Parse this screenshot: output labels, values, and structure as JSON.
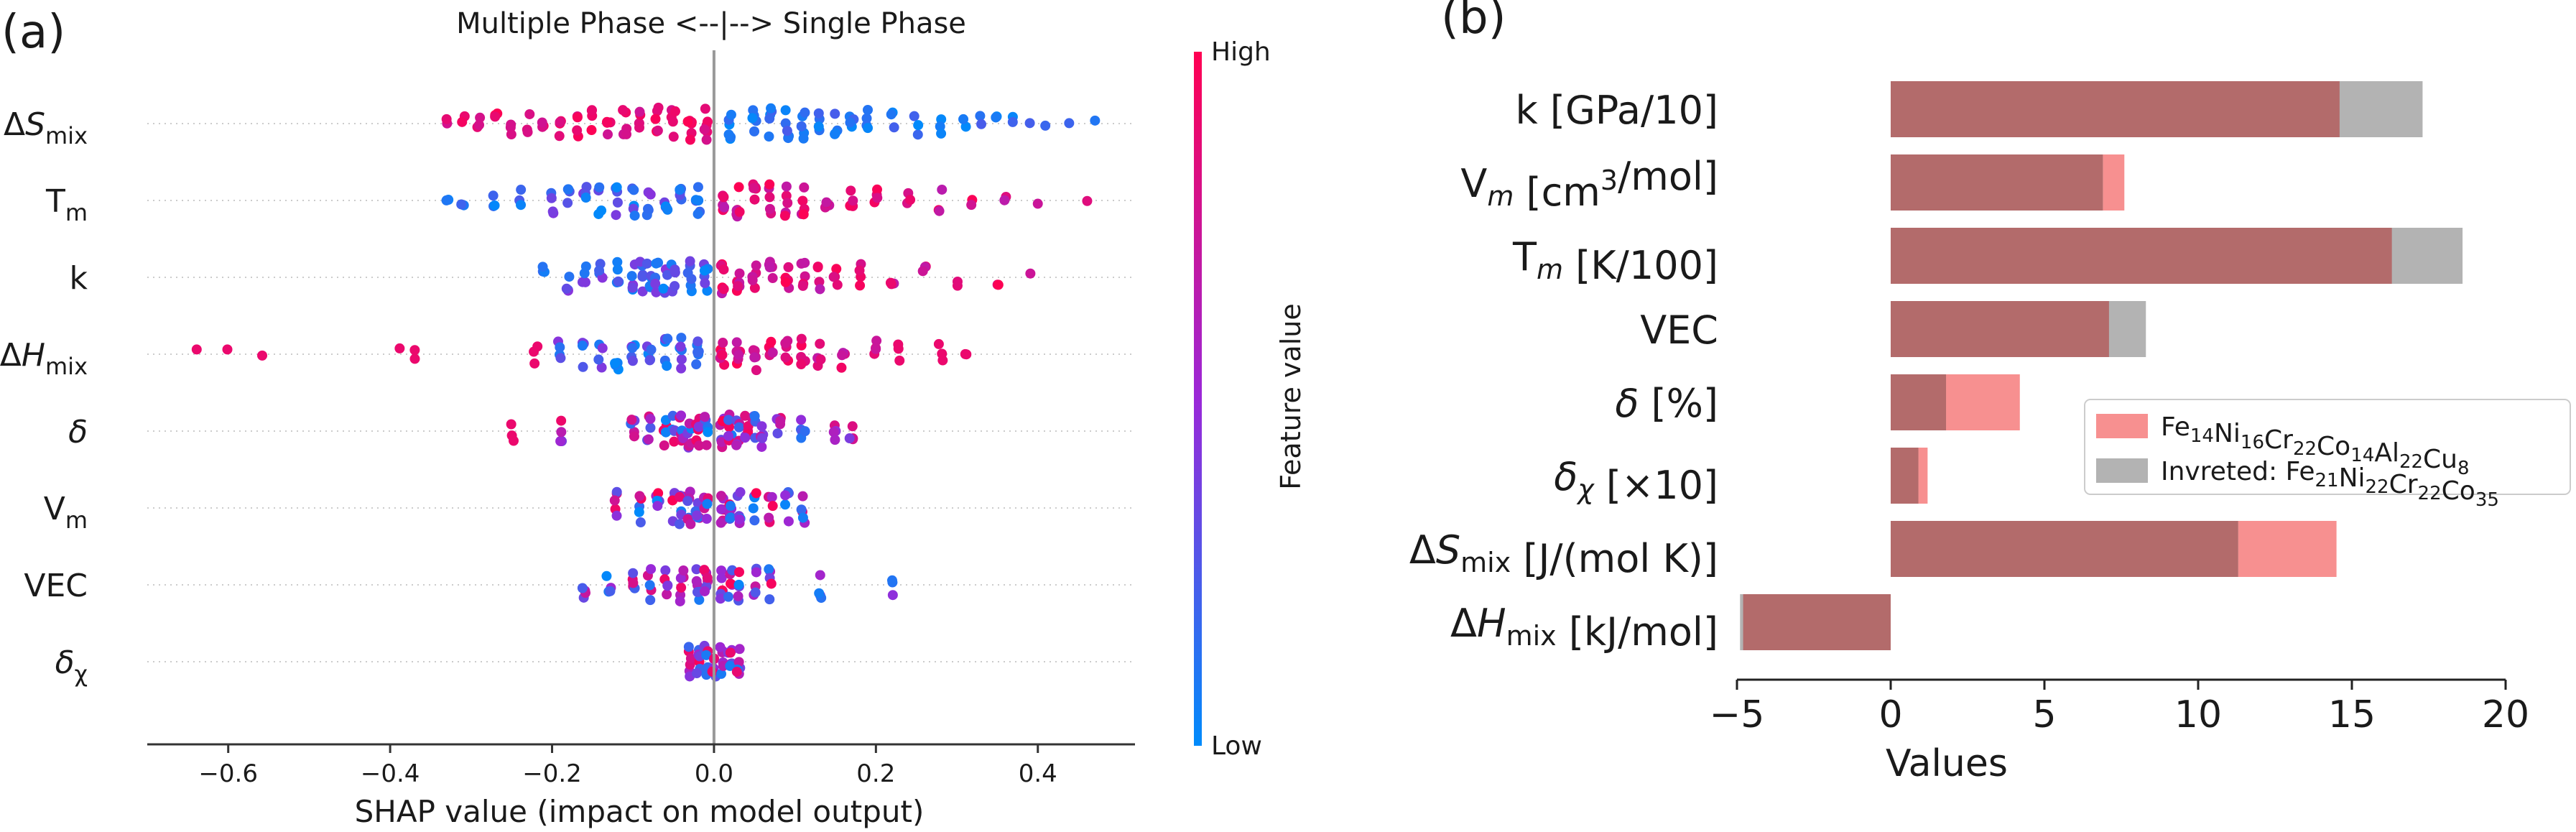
{
  "chart_data": [
    {
      "panel": "(a)",
      "type": "scatter",
      "title": "Multiple Phase <--|--> Single Phase",
      "xlabel": "SHAP value (impact on model output)",
      "xlim": [
        -0.7,
        0.52
      ],
      "xticks": [
        -0.6,
        -0.4,
        -0.2,
        0.0,
        0.2,
        0.4
      ],
      "xtick_labels": [
        "−0.6",
        "−0.4",
        "−0.2",
        "0.0",
        "0.2",
        "0.4"
      ],
      "colorbar": {
        "label": "Feature value",
        "high": "High",
        "low": "Low",
        "high_color": "#ff0052",
        "low_color": "#008bfb"
      },
      "features": [
        {
          "main": "Δ",
          "italic": "S",
          "sub": "mix",
          "neg": [
            -0.33,
            -0.31,
            -0.29,
            -0.27,
            -0.25,
            -0.23,
            -0.21,
            -0.19,
            -0.17,
            -0.15,
            -0.13,
            -0.11,
            -0.09,
            -0.07,
            -0.05,
            -0.03,
            -0.01
          ],
          "pos": [
            0.02,
            0.05,
            0.07,
            0.09,
            0.11,
            0.13,
            0.15,
            0.17,
            0.19,
            0.22,
            0.25,
            0.28,
            0.31,
            0.33,
            0.35,
            0.37,
            0.39,
            0.41,
            0.44,
            0.47
          ]
        },
        {
          "main": "T",
          "italic": "",
          "sub": "m",
          "neg": [
            -0.33,
            -0.31,
            -0.27,
            -0.24,
            -0.2,
            -0.18,
            -0.16,
            -0.14,
            -0.12,
            -0.1,
            -0.08,
            -0.06,
            -0.04,
            -0.02
          ],
          "pos": [
            0.01,
            0.03,
            0.05,
            0.07,
            0.09,
            0.11,
            0.14,
            0.17,
            0.2,
            0.24,
            0.28,
            0.32,
            0.36,
            0.4,
            0.46
          ]
        },
        {
          "main": "k",
          "italic": "",
          "sub": "",
          "neg": [
            -0.21,
            -0.18,
            -0.16,
            -0.14,
            -0.12,
            -0.1,
            -0.09,
            -0.08,
            -0.07,
            -0.06,
            -0.05,
            -0.03,
            -0.01
          ],
          "pos": [
            0.01,
            0.03,
            0.05,
            0.07,
            0.09,
            0.11,
            0.13,
            0.15,
            0.18,
            0.22,
            0.26,
            0.3,
            0.35,
            0.39
          ]
        },
        {
          "main": "Δ",
          "italic": "H",
          "sub": "mix",
          "neg": [
            -0.64,
            -0.6,
            -0.56,
            -0.39,
            -0.37,
            -0.22,
            -0.19,
            -0.16,
            -0.14,
            -0.12,
            -0.1,
            -0.08,
            -0.06,
            -0.04,
            -0.02
          ],
          "pos": [
            0.01,
            0.03,
            0.05,
            0.07,
            0.09,
            0.11,
            0.13,
            0.16,
            0.2,
            0.23,
            0.28,
            0.31
          ]
        },
        {
          "main": "",
          "italic": "δ",
          "sub": "",
          "neg": [
            -0.25,
            -0.19,
            -0.1,
            -0.08,
            -0.06,
            -0.05,
            -0.04,
            -0.03,
            -0.02,
            -0.01
          ],
          "pos": [
            0.01,
            0.02,
            0.03,
            0.04,
            0.05,
            0.06,
            0.08,
            0.11,
            0.15,
            0.17
          ]
        },
        {
          "main": "V",
          "italic": "",
          "sub": "m",
          "neg": [
            -0.12,
            -0.09,
            -0.07,
            -0.05,
            -0.04,
            -0.03,
            -0.02,
            -0.01
          ],
          "pos": [
            0.01,
            0.02,
            0.03,
            0.05,
            0.07,
            0.09,
            0.11
          ]
        },
        {
          "main": "VEC",
          "italic": "",
          "sub": "",
          "neg": [
            -0.16,
            -0.13,
            -0.1,
            -0.08,
            -0.06,
            -0.04,
            -0.02,
            -0.01
          ],
          "pos": [
            0.01,
            0.02,
            0.03,
            0.05,
            0.07,
            0.13,
            0.22
          ]
        },
        {
          "main": "",
          "italic": "δ",
          "sub": "χ",
          "neg": [
            -0.03,
            -0.02,
            -0.01
          ],
          "pos": [
            0.0,
            0.01,
            0.02,
            0.03
          ]
        }
      ]
    },
    {
      "panel": "(b)",
      "type": "bar",
      "orientation": "horizontal",
      "xlabel": "Values",
      "xlim": [
        -5,
        20
      ],
      "xticks": [
        -5,
        0,
        5,
        10,
        15,
        20
      ],
      "xtick_labels": [
        "−5",
        "0",
        "5",
        "10",
        "15",
        "20"
      ],
      "categories": [
        {
          "pre": "",
          "italic": "",
          "main": "k [GPa/10]",
          "sub": "",
          "sup": "",
          "post": ""
        },
        {
          "pre": "V",
          "italic": "m",
          "main": "",
          "sub": "",
          "sup": "3",
          "supbase": " [cm",
          "post": "/mol]"
        },
        {
          "pre": "T",
          "italic": "m",
          "main": " [K/100]",
          "sub": "",
          "sup": "",
          "post": ""
        },
        {
          "pre": "",
          "italic": "",
          "main": "VEC",
          "sub": "",
          "sup": "",
          "post": ""
        },
        {
          "pre": "",
          "italic": "δ",
          "main": " [%]",
          "sub": "",
          "sup": "",
          "post": ""
        },
        {
          "pre": "",
          "italic": "δχ",
          "main": "  [×10]",
          "sub": "",
          "sup": "",
          "post": ""
        },
        {
          "pre": "Δ",
          "italic": "S",
          "main": "",
          "sub": "mix",
          "sup": "",
          "post": "  [J/(mol K)]"
        },
        {
          "pre": "Δ",
          "italic": "H",
          "main": "",
          "sub": "mix",
          "sup": "",
          "post": " [kJ/mol]"
        }
      ],
      "series": [
        {
          "name": "Fe14Ni16Cr22Co14Al22Cu8",
          "color": "#f79090",
          "values": [
            14.6,
            7.6,
            16.3,
            7.1,
            4.2,
            1.2,
            14.5,
            -4.8
          ]
        },
        {
          "name": "Invreted: Fe21Ni22Cr22Co35",
          "color": "#b3b3b3",
          "values": [
            17.3,
            6.9,
            18.6,
            8.3,
            1.8,
            0.9,
            11.3,
            -4.9
          ]
        }
      ],
      "overlap_color": "#b36b6b",
      "legend": [
        {
          "text": "Fe",
          "parts": [
            [
              "Fe",
              "14"
            ],
            [
              "Ni",
              "16"
            ],
            [
              "Cr",
              "22"
            ],
            [
              "Co",
              "14"
            ],
            [
              "Al",
              "22"
            ],
            [
              "Cu",
              "8"
            ]
          ]
        },
        {
          "text": "Invreted: ",
          "parts": [
            [
              "Fe",
              "21"
            ],
            [
              "Ni",
              "22"
            ],
            [
              "Cr",
              "22"
            ],
            [
              "Co",
              "35"
            ]
          ]
        }
      ],
      "legend_position": "right"
    }
  ]
}
